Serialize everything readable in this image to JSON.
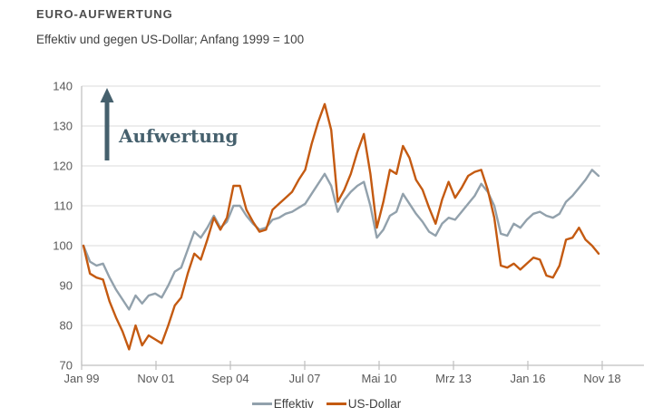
{
  "header": {
    "title": "EURO-AUFWERTUNG",
    "subtitle": "Effektiv und gegen US-Dollar; Anfang 1999 = 100"
  },
  "annotation": {
    "label": "Aufwertung",
    "arrow_direction": "up",
    "color": "#45606d"
  },
  "colors": {
    "effektiv_line": "#92a1ac",
    "usdollar_line": "#c45a11",
    "gridline": "#dbdbdb",
    "axis": "#bfbfbf",
    "tick_text": "#595959"
  },
  "chart_data": {
    "type": "line",
    "title": "EURO-AUFWERTUNG",
    "subtitle": "Effektiv und gegen US-Dollar; Anfang 1999 = 100",
    "x_tick_labels": [
      "Jan 99",
      "Nov 01",
      "Sep 04",
      "Jul 07",
      "Mai 10",
      "Mrz 13",
      "Jan 16",
      "Nov 18"
    ],
    "y_ticks": [
      140,
      130,
      120,
      110,
      100,
      90,
      80,
      70
    ],
    "ylim": [
      70,
      140
    ],
    "x_range": [
      "Jan 1999",
      "Nov 2018"
    ],
    "frequency": "quarterly",
    "grid": "horizontal",
    "legend_position": "bottom-center",
    "annotation": "Aufwertung (upward arrow, appreciation)",
    "series": [
      {
        "name": "Effektiv",
        "color": "#92a1ac",
        "values": [
          100,
          96,
          95,
          95.5,
          92,
          89,
          86.5,
          84,
          87.5,
          85.5,
          87.5,
          88,
          87,
          90,
          93.5,
          94.5,
          99,
          103.5,
          102,
          104.5,
          107.5,
          104.5,
          106,
          110,
          110,
          107.5,
          105.5,
          104,
          104.5,
          106.5,
          107,
          108,
          108.5,
          109.5,
          110.5,
          113,
          115.5,
          118,
          115,
          108.5,
          111.5,
          113.5,
          115,
          116,
          110,
          102,
          104,
          107.5,
          108.5,
          113,
          110.5,
          108,
          106,
          103.5,
          102.5,
          105.5,
          107,
          106.5,
          108.5,
          110.5,
          112.5,
          115.5,
          113.5,
          110,
          103,
          102.5,
          105.5,
          104.5,
          106.5,
          108,
          108.5,
          107.5,
          107,
          108,
          111,
          112.5,
          114.5,
          116.5,
          119,
          117.5
        ]
      },
      {
        "name": "US-Dollar",
        "color": "#c45a11",
        "values": [
          100,
          93,
          92,
          91.5,
          86,
          82,
          78.5,
          74,
          80,
          75,
          77.5,
          76.5,
          75.5,
          80,
          85,
          87,
          93,
          98,
          96.5,
          101.5,
          107,
          104,
          107,
          115,
          115,
          109,
          106,
          103.5,
          104,
          109,
          110.5,
          112,
          113.5,
          116.5,
          119,
          125.5,
          131,
          135.5,
          129,
          111,
          114,
          118,
          123.5,
          128,
          118,
          104.5,
          111,
          119,
          118,
          125,
          122,
          116.5,
          114,
          109.5,
          105.5,
          111.5,
          116,
          112,
          114.5,
          117.5,
          118.5,
          119,
          114,
          107,
          95,
          94.5,
          95.5,
          94,
          95.5,
          97,
          96.5,
          92.5,
          92,
          95,
          101.5,
          102,
          104.5,
          101.5,
          100,
          98
        ]
      }
    ]
  }
}
